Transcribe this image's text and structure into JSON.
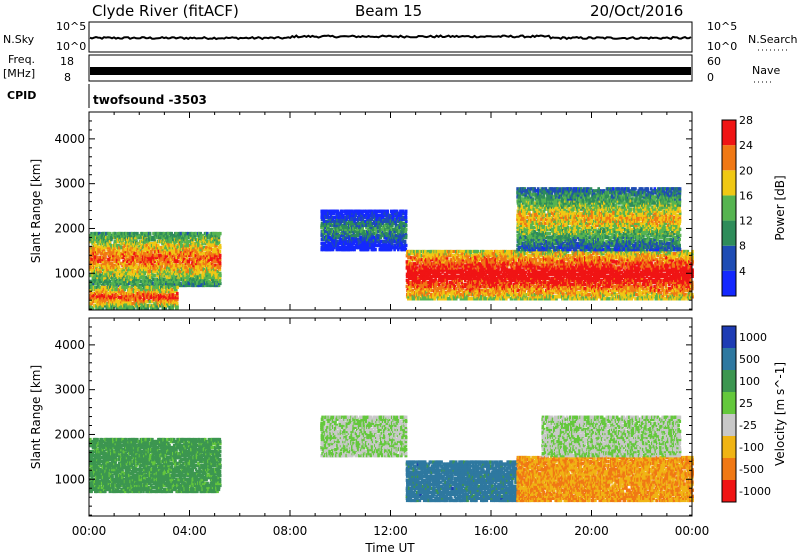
{
  "header": {
    "title": "Clyde River (fitACF)",
    "beam": "Beam 15",
    "date": "20/Oct/2016"
  },
  "strips": {
    "nsky_label": "N.Sky",
    "nsky_ticks": [
      "10^5",
      "10^0"
    ],
    "nsearch_label": "N.Search",
    "nsearch_ticks": [
      "10^5",
      "10^0"
    ],
    "freq_label_1": "Freq.",
    "freq_label_2": "[MHz]",
    "freq_ticks": [
      "18",
      "8"
    ],
    "nave_label": "Nave",
    "nave_ticks": [
      "60",
      "0"
    ],
    "cpid_label": "CPID",
    "cpid_text": "twofsound -3503"
  },
  "chart_data": [
    {
      "type": "heatmap",
      "name": "power",
      "ylabel": "Slant Range [km]",
      "ylim": [
        180,
        4600
      ],
      "y_ticks": [
        1000,
        2000,
        3000,
        4000
      ],
      "colorbar": {
        "label": "Power [dB]",
        "ticks": [
          "4",
          "8",
          "12",
          "16",
          "20",
          "24",
          "28"
        ],
        "colors": [
          "#1428ff",
          "#1e4cb4",
          "#2e8c5a",
          "#56b450",
          "#f0c814",
          "#f07814",
          "#f01414"
        ]
      },
      "echo_regions": [
        {
          "t_start": 0.0,
          "t_end": 5.2,
          "r_min": 700,
          "r_max": 1900,
          "level": 20
        },
        {
          "t_start": 0.0,
          "t_end": 3.5,
          "r_min": 200,
          "r_max": 700,
          "level": 22
        },
        {
          "t_start": 9.2,
          "t_end": 12.6,
          "r_min": 1500,
          "r_max": 2400,
          "level": 8
        },
        {
          "t_start": 12.6,
          "t_end": 24.0,
          "r_min": 400,
          "r_max": 1500,
          "level": 26
        },
        {
          "t_start": 17.0,
          "t_end": 23.5,
          "r_min": 1500,
          "r_max": 2900,
          "level": 16
        }
      ]
    },
    {
      "type": "heatmap",
      "name": "velocity",
      "ylabel": "Slant Range [km]",
      "xlabel": "Time UT",
      "ylim": [
        180,
        4600
      ],
      "y_ticks": [
        1000,
        2000,
        3000,
        4000
      ],
      "x_ticks": [
        "00:00",
        "04:00",
        "08:00",
        "12:00",
        "16:00",
        "20:00",
        "00:00"
      ],
      "xlim": [
        0,
        24
      ],
      "colorbar": {
        "label": "Velocity [m s^-1]",
        "ticks": [
          "1000",
          "500",
          "100",
          "25",
          "-25",
          "-100",
          "-500",
          "-1000"
        ],
        "colors": [
          "#1e3cb4",
          "#2e78a0",
          "#3c9650",
          "#64c83c",
          "#c8c8c8",
          "#f0b414",
          "#f07814",
          "#f01414"
        ]
      },
      "echo_regions": [
        {
          "t_start": 0.0,
          "t_end": 5.2,
          "r_min": 700,
          "r_max": 1900,
          "velocity": 100
        },
        {
          "t_start": 9.2,
          "t_end": 12.6,
          "r_min": 1500,
          "r_max": 2400,
          "velocity": 0
        },
        {
          "t_start": 12.6,
          "t_end": 17.0,
          "r_min": 500,
          "r_max": 1400,
          "velocity": 500
        },
        {
          "t_start": 17.0,
          "t_end": 24.0,
          "r_min": 500,
          "r_max": 1500,
          "velocity": -300
        },
        {
          "t_start": 18.0,
          "t_end": 23.5,
          "r_min": 1500,
          "r_max": 2400,
          "velocity": 0
        }
      ]
    }
  ]
}
